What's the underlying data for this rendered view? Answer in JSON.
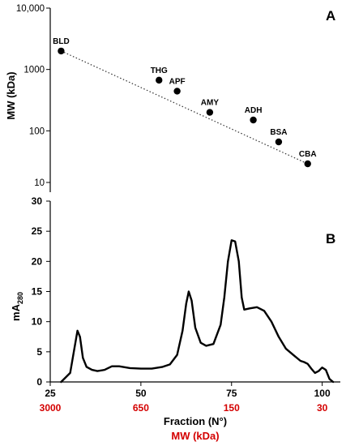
{
  "chart_data": [
    {
      "panel": "A",
      "type": "scatter",
      "y_scale": "log",
      "ylabel": "MW (kDa)",
      "ylim": [
        10,
        10000
      ],
      "yticks": [
        "10,000",
        "1000",
        "100",
        "10"
      ],
      "ytick_values": [
        10000,
        1000,
        100,
        10
      ],
      "xlim": [
        25,
        105
      ],
      "points": [
        {
          "label": "BLD",
          "x": 28,
          "y": 2000
        },
        {
          "label": "THG",
          "x": 55,
          "y": 669
        },
        {
          "label": "APF",
          "x": 60,
          "y": 443
        },
        {
          "label": "AMY",
          "x": 69,
          "y": 200
        },
        {
          "label": "ADH",
          "x": 81,
          "y": 150
        },
        {
          "label": "BSA",
          "x": 88,
          "y": 66
        },
        {
          "label": "CBA",
          "x": 96,
          "y": 29
        }
      ],
      "trendline": {
        "style": "dotted",
        "from": {
          "x": 28,
          "y": 2000
        },
        "to": {
          "x": 96,
          "y": 29
        }
      }
    },
    {
      "panel": "B",
      "type": "line",
      "ylabel_main": "mA",
      "ylabel_sub": "280",
      "xlabel": "Fraction (N°)",
      "xlabel2": "MW (kDa)",
      "xlim": [
        25,
        105
      ],
      "ylim": [
        0,
        30
      ],
      "xticks": [
        25,
        50,
        75,
        100
      ],
      "yticks": [
        0,
        5,
        10,
        15,
        20,
        25,
        30
      ],
      "mw_ticks": [
        "3000",
        "650",
        "150",
        "30"
      ],
      "series": [
        {
          "x": [
            28,
            30.5,
            31.5,
            32.5,
            33.2,
            34,
            35,
            36.5,
            38,
            40,
            42,
            44,
            47,
            50,
            53,
            56,
            58,
            60,
            61.5,
            62.5,
            63.2,
            64,
            65,
            66.5,
            68,
            70,
            72,
            73,
            74,
            75,
            76,
            77,
            77.8,
            78.5,
            80,
            82,
            84,
            86,
            88,
            90,
            92,
            94,
            95,
            96,
            97,
            98,
            99,
            100,
            101,
            102,
            103
          ],
          "y": [
            0,
            1.5,
            5,
            8.5,
            7.5,
            4,
            2.5,
            2,
            1.8,
            2,
            2.6,
            2.6,
            2.3,
            2.2,
            2.2,
            2.5,
            2.9,
            4.5,
            8.5,
            13,
            15,
            13.5,
            9,
            6.5,
            6,
            6.3,
            9.5,
            14,
            20,
            23.5,
            23.3,
            20,
            14,
            12,
            12.2,
            12.4,
            11.8,
            10,
            7.5,
            5.5,
            4.5,
            3.5,
            3.3,
            3,
            2.2,
            1.5,
            1.8,
            2.4,
            2,
            0.5,
            0
          ]
        }
      ]
    }
  ]
}
